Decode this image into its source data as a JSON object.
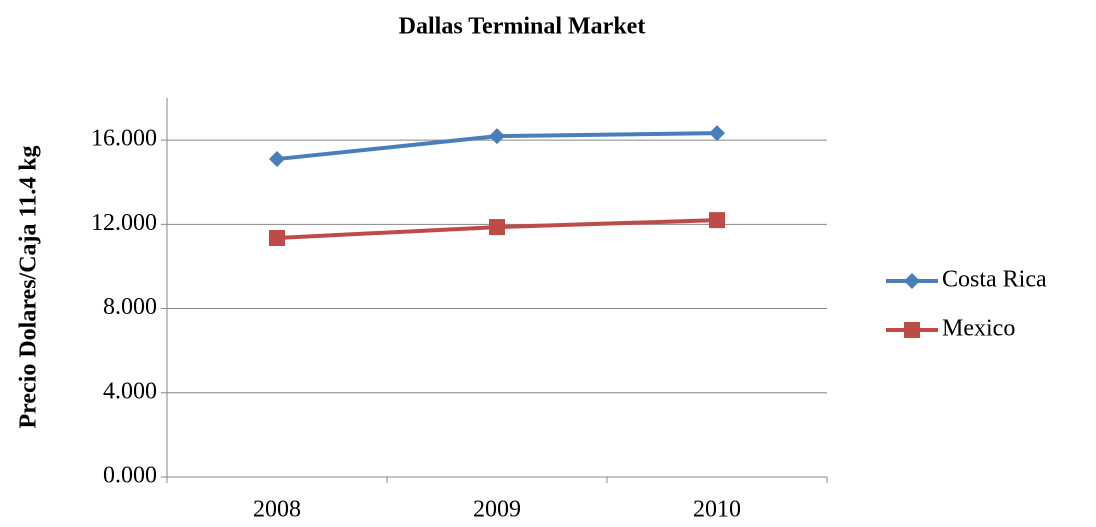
{
  "chart_data": {
    "type": "line",
    "title": "Dallas Terminal Market",
    "y_label": "Precio Dolares/Caja 11.4 kg",
    "categories": [
      "2008",
      "2009",
      "2010"
    ],
    "series": [
      {
        "name": "Costa Rica",
        "color": "#4a7ebb",
        "marker": "diamond",
        "values": [
          15.1,
          16.19,
          16.33
        ]
      },
      {
        "name": "Mexico",
        "color": "#be4b48",
        "marker": "square",
        "values": [
          11.35,
          11.87,
          12.2
        ]
      }
    ],
    "ylim": [
      0,
      18
    ],
    "yticks": [
      {
        "value": 0,
        "label": "0.000"
      },
      {
        "value": 4,
        "label": "4.000"
      },
      {
        "value": 8,
        "label": "8.000"
      },
      {
        "value": 12,
        "label": "12.000"
      },
      {
        "value": 16,
        "label": "16.000"
      }
    ],
    "grid": true,
    "legend": "right"
  }
}
